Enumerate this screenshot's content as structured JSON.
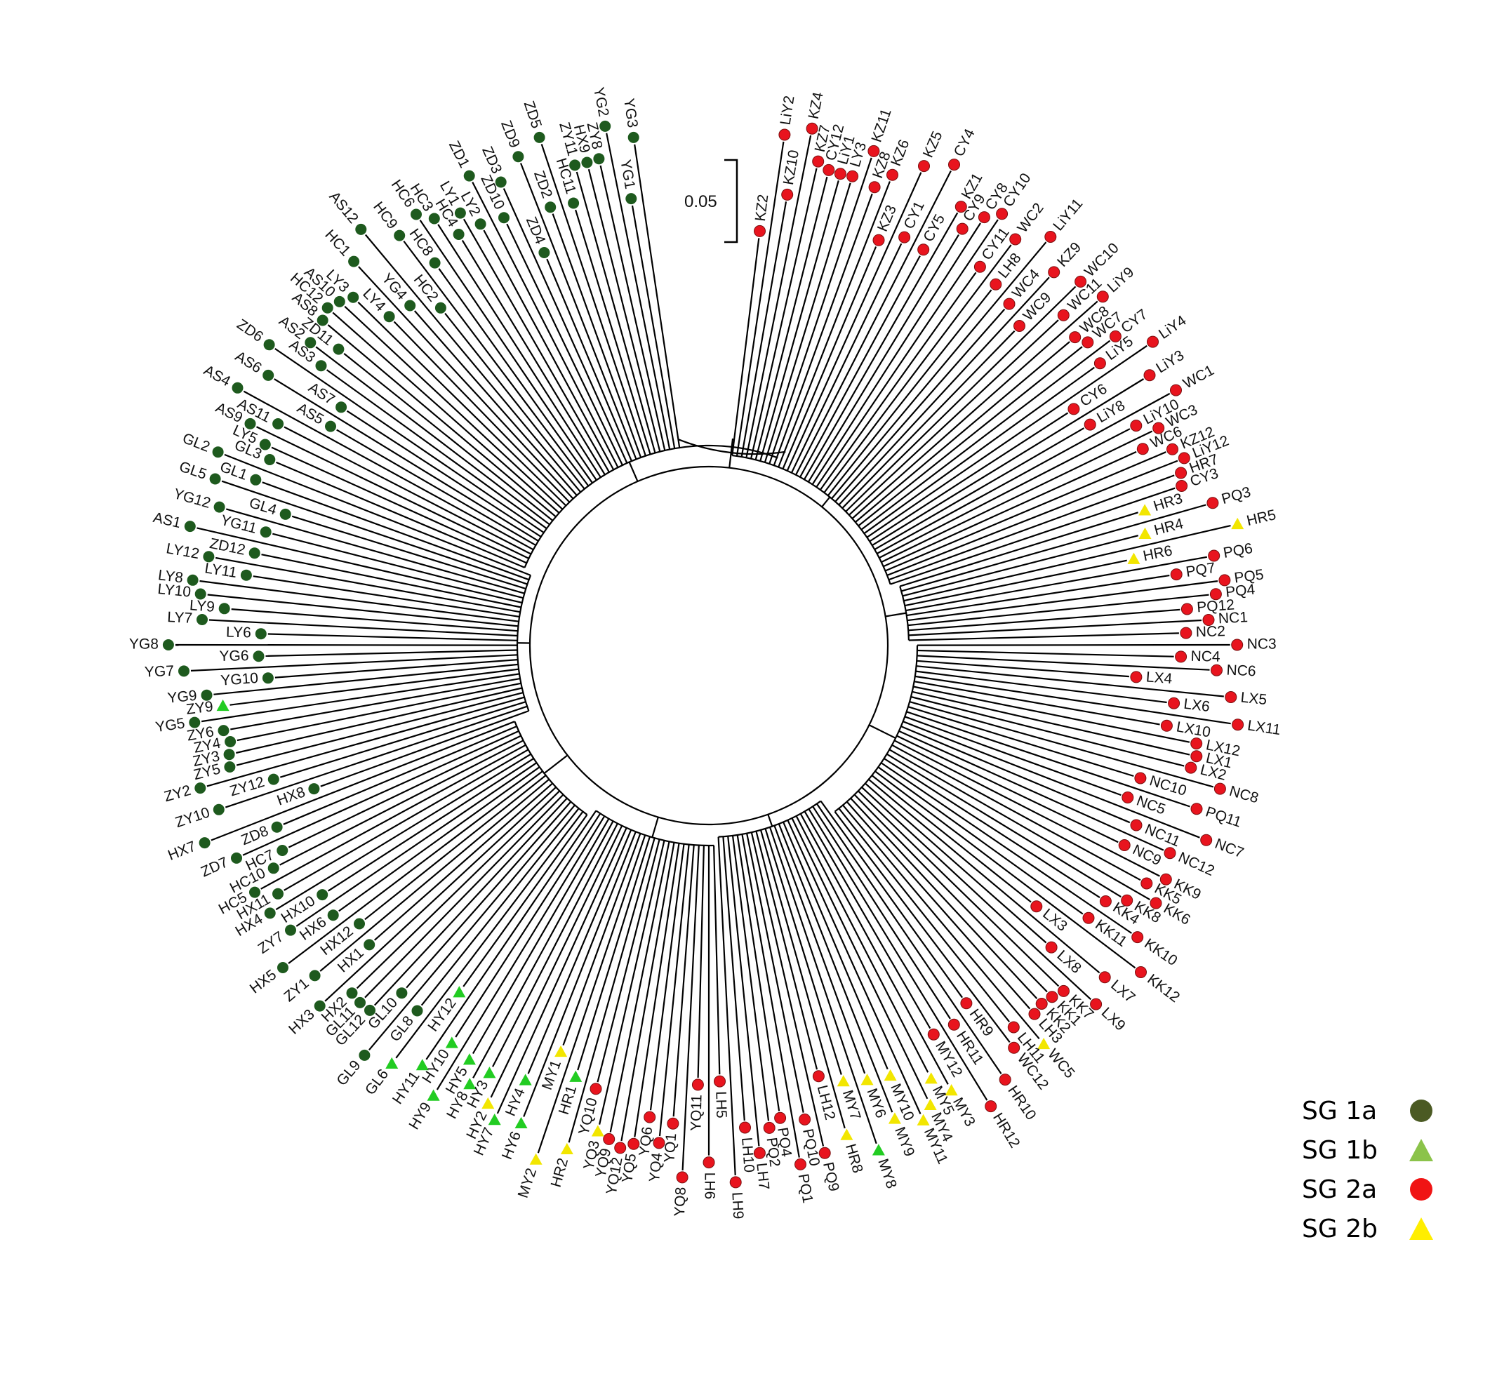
{
  "scale_bar": {
    "label": "0.05"
  },
  "groups": [
    {
      "id": "1a",
      "label": "SG 1a",
      "shape": "circle",
      "color": "#1e5a1e",
      "legend_color": "#4b5a23"
    },
    {
      "id": "1b",
      "label": "SG 1b",
      "shape": "triangle",
      "color": "#22cc22",
      "legend_color": "#8bc34a"
    },
    {
      "id": "2a",
      "label": "SG  2a",
      "shape": "circle",
      "color": "#e8141e",
      "legend_color": "#f01414"
    },
    {
      "id": "2b",
      "label": "SG  2b",
      "shape": "triangle",
      "color": "#f2e600",
      "legend_color": "#ffee00"
    }
  ],
  "leaves": [
    {
      "name": "KZ2",
      "g": "2a"
    },
    {
      "name": "LiY2",
      "g": "2a"
    },
    {
      "name": "KZ10",
      "g": "2a"
    },
    {
      "name": "KZ4",
      "g": "2a"
    },
    {
      "name": "KZ7",
      "g": "2a"
    },
    {
      "name": "CY12",
      "g": "2a"
    },
    {
      "name": "LiY1",
      "g": "2a"
    },
    {
      "name": "LY3",
      "g": "2a"
    },
    {
      "name": "KZ11",
      "g": "2a"
    },
    {
      "name": "KZ8",
      "g": "2a"
    },
    {
      "name": "KZ6",
      "g": "2a"
    },
    {
      "name": "KZ3",
      "g": "2a"
    },
    {
      "name": "KZ5",
      "g": "2a"
    },
    {
      "name": "CY1",
      "g": "2a"
    },
    {
      "name": "CY4",
      "g": "2a"
    },
    {
      "name": "CY5",
      "g": "2a"
    },
    {
      "name": "KZ1",
      "g": "2a"
    },
    {
      "name": "CY9",
      "g": "2a"
    },
    {
      "name": "CY8",
      "g": "2a"
    },
    {
      "name": "CY10",
      "g": "2a"
    },
    {
      "name": "CY11",
      "g": "2a"
    },
    {
      "name": "WC2",
      "g": "2a"
    },
    {
      "name": "LH8",
      "g": "2a"
    },
    {
      "name": "LiY11",
      "g": "2a"
    },
    {
      "name": "WC4",
      "g": "2a"
    },
    {
      "name": "KZ9",
      "g": "2a"
    },
    {
      "name": "WC9",
      "g": "2a"
    },
    {
      "name": "WC10",
      "g": "2a"
    },
    {
      "name": "WC11",
      "g": "2a"
    },
    {
      "name": "LiY9",
      "g": "2a"
    },
    {
      "name": "WC8",
      "g": "2a"
    },
    {
      "name": "WC7",
      "g": "2a"
    },
    {
      "name": "CY7",
      "g": "2a"
    },
    {
      "name": "LiY5",
      "g": "2a"
    },
    {
      "name": "LiY4",
      "g": "2a"
    },
    {
      "name": "CY6",
      "g": "2a"
    },
    {
      "name": "LiY3",
      "g": "2a"
    },
    {
      "name": "LiY8",
      "g": "2a"
    },
    {
      "name": "WC1",
      "g": "2a"
    },
    {
      "name": "LiY10",
      "g": "2a"
    },
    {
      "name": "WC3",
      "g": "2a"
    },
    {
      "name": "WC6",
      "g": "2a"
    },
    {
      "name": "KZ12",
      "g": "2a"
    },
    {
      "name": "LiY12",
      "g": "2a"
    },
    {
      "name": "HR7",
      "g": "2a"
    },
    {
      "name": "CY3",
      "g": "2a"
    },
    {
      "name": "HR3",
      "g": "2b"
    },
    {
      "name": "PQ3",
      "g": "2a"
    },
    {
      "name": "HR4",
      "g": "2b"
    },
    {
      "name": "HR5",
      "g": "2b"
    },
    {
      "name": "HR6",
      "g": "2b"
    },
    {
      "name": "PQ6",
      "g": "2a"
    },
    {
      "name": "PQ7",
      "g": "2a"
    },
    {
      "name": "PQ5",
      "g": "2a"
    },
    {
      "name": "PQ4",
      "g": "2a"
    },
    {
      "name": "PQ12",
      "g": "2a"
    },
    {
      "name": "NC1",
      "g": "2a"
    },
    {
      "name": "NC2",
      "g": "2a"
    },
    {
      "name": "NC3",
      "g": "2a"
    },
    {
      "name": "NC4",
      "g": "2a"
    },
    {
      "name": "NC6",
      "g": "2a"
    },
    {
      "name": "LX4",
      "g": "2a"
    },
    {
      "name": "LX5",
      "g": "2a"
    },
    {
      "name": "LX6",
      "g": "2a"
    },
    {
      "name": "LX11",
      "g": "2a"
    },
    {
      "name": "LX10",
      "g": "2a"
    },
    {
      "name": "LX12",
      "g": "2a"
    },
    {
      "name": "LX1",
      "g": "2a"
    },
    {
      "name": "LX2",
      "g": "2a"
    },
    {
      "name": "NC8",
      "g": "2a"
    },
    {
      "name": "NC10",
      "g": "2a"
    },
    {
      "name": "PQ11",
      "g": "2a"
    },
    {
      "name": "NC5",
      "g": "2a"
    },
    {
      "name": "NC7",
      "g": "2a"
    },
    {
      "name": "NC11",
      "g": "2a"
    },
    {
      "name": "NC12",
      "g": "2a"
    },
    {
      "name": "NC9",
      "g": "2a"
    },
    {
      "name": "KK9",
      "g": "2a"
    },
    {
      "name": "KK5",
      "g": "2a"
    },
    {
      "name": "KK6",
      "g": "2a"
    },
    {
      "name": "KK8",
      "g": "2a"
    },
    {
      "name": "KK4",
      "g": "2a"
    },
    {
      "name": "KK10",
      "g": "2a"
    },
    {
      "name": "KK11",
      "g": "2a"
    },
    {
      "name": "KK12",
      "g": "2a"
    },
    {
      "name": "LX3",
      "g": "2a"
    },
    {
      "name": "LX7",
      "g": "2a"
    },
    {
      "name": "LX8",
      "g": "2a"
    },
    {
      "name": "LX9",
      "g": "2a"
    },
    {
      "name": "KK7",
      "g": "2a"
    },
    {
      "name": "KK1",
      "g": "2a"
    },
    {
      "name": "KK2",
      "g": "2a"
    },
    {
      "name": "LH3",
      "g": "2a"
    },
    {
      "name": "WC5",
      "g": "2b"
    },
    {
      "name": "LH11",
      "g": "2a"
    },
    {
      "name": "WC12",
      "g": "2a"
    },
    {
      "name": "HR9",
      "g": "2a"
    },
    {
      "name": "HR10",
      "g": "2a"
    },
    {
      "name": "HR11",
      "g": "2a"
    },
    {
      "name": "HR12",
      "g": "2a"
    },
    {
      "name": "MY12",
      "g": "2a"
    },
    {
      "name": "MY3",
      "g": "2b"
    },
    {
      "name": "MY5",
      "g": "2b"
    },
    {
      "name": "MY4",
      "g": "2b"
    },
    {
      "name": "MY11",
      "g": "2b"
    },
    {
      "name": "MY10",
      "g": "2b"
    },
    {
      "name": "MY9",
      "g": "2b"
    },
    {
      "name": "MY6",
      "g": "2b"
    },
    {
      "name": "MY8",
      "g": "1b"
    },
    {
      "name": "MY7",
      "g": "2b"
    },
    {
      "name": "HR8",
      "g": "2b"
    },
    {
      "name": "LH12",
      "g": "2a"
    },
    {
      "name": "PQ9",
      "g": "2a"
    },
    {
      "name": "PQ10",
      "g": "2a"
    },
    {
      "name": "PQ1",
      "g": "2a"
    },
    {
      "name": "PQ4",
      "g": "2a"
    },
    {
      "name": "PQ2",
      "g": "2a"
    },
    {
      "name": "LH7",
      "g": "2a"
    },
    {
      "name": "LH10",
      "g": "2a"
    },
    {
      "name": "LH9",
      "g": "2a"
    },
    {
      "name": "LH5",
      "g": "2a"
    },
    {
      "name": "LH6",
      "g": "2a"
    },
    {
      "name": "YQ11",
      "g": "2a"
    },
    {
      "name": "YQ8",
      "g": "2a"
    },
    {
      "name": "YQ1",
      "g": "2a"
    },
    {
      "name": "YQ4",
      "g": "2a"
    },
    {
      "name": "YQ6",
      "g": "2a"
    },
    {
      "name": "YQ5",
      "g": "2a"
    },
    {
      "name": "YQ12",
      "g": "2a"
    },
    {
      "name": "YQ9",
      "g": "2a"
    },
    {
      "name": "YQ3",
      "g": "2b"
    },
    {
      "name": "YQ10",
      "g": "2a"
    },
    {
      "name": "HR2",
      "g": "2b"
    },
    {
      "name": "HR1",
      "g": "1b"
    },
    {
      "name": "MY2",
      "g": "2b"
    },
    {
      "name": "MY1",
      "g": "2b"
    },
    {
      "name": "HY6",
      "g": "1b"
    },
    {
      "name": "HY4",
      "g": "1b"
    },
    {
      "name": "HY7",
      "g": "1b"
    },
    {
      "name": "HY2",
      "g": "2b"
    },
    {
      "name": "HY3",
      "g": "1b"
    },
    {
      "name": "HY8",
      "g": "1b"
    },
    {
      "name": "HY5",
      "g": "1b"
    },
    {
      "name": "HY9",
      "g": "1b"
    },
    {
      "name": "HY10",
      "g": "1b"
    },
    {
      "name": "HY11",
      "g": "1b"
    },
    {
      "name": "HY12",
      "g": "1b"
    },
    {
      "name": "GL6",
      "g": "1b"
    },
    {
      "name": "GL8",
      "g": "1a"
    },
    {
      "name": "GL9",
      "g": "1a"
    },
    {
      "name": "GL10",
      "g": "1a"
    },
    {
      "name": "GL12",
      "g": "1a"
    },
    {
      "name": "GL11",
      "g": "1a"
    },
    {
      "name": "HX2",
      "g": "1a"
    },
    {
      "name": "HX3",
      "g": "1a"
    },
    {
      "name": "HX1",
      "g": "1a"
    },
    {
      "name": "ZY1",
      "g": "1a"
    },
    {
      "name": "HX12",
      "g": "1a"
    },
    {
      "name": "HX5",
      "g": "1a"
    },
    {
      "name": "HX6",
      "g": "1a"
    },
    {
      "name": "ZY7",
      "g": "1a"
    },
    {
      "name": "HX10",
      "g": "1a"
    },
    {
      "name": "HX4",
      "g": "1a"
    },
    {
      "name": "HX11",
      "g": "1a"
    },
    {
      "name": "HC5",
      "g": "1a"
    },
    {
      "name": "HC10",
      "g": "1a"
    },
    {
      "name": "HC7",
      "g": "1a"
    },
    {
      "name": "ZD7",
      "g": "1a"
    },
    {
      "name": "ZD8",
      "g": "1a"
    },
    {
      "name": "HX7",
      "g": "1a"
    },
    {
      "name": "HX8",
      "g": "1a"
    },
    {
      "name": "ZY10",
      "g": "1a"
    },
    {
      "name": "ZY12",
      "g": "1a"
    },
    {
      "name": "ZY2",
      "g": "1a"
    },
    {
      "name": "ZY5",
      "g": "1a"
    },
    {
      "name": "ZY3",
      "g": "1a"
    },
    {
      "name": "ZY4",
      "g": "1a"
    },
    {
      "name": "ZY6",
      "g": "1a"
    },
    {
      "name": "YG5",
      "g": "1a"
    },
    {
      "name": "ZY9",
      "g": "1b"
    },
    {
      "name": "YG9",
      "g": "1a"
    },
    {
      "name": "YG10",
      "g": "1a"
    },
    {
      "name": "YG7",
      "g": "1a"
    },
    {
      "name": "YG6",
      "g": "1a"
    },
    {
      "name": "YG8",
      "g": "1a"
    },
    {
      "name": "LY6",
      "g": "1a"
    },
    {
      "name": "LY7",
      "g": "1a"
    },
    {
      "name": "LY9",
      "g": "1a"
    },
    {
      "name": "LY10",
      "g": "1a"
    },
    {
      "name": "LY8",
      "g": "1a"
    },
    {
      "name": "LY11",
      "g": "1a"
    },
    {
      "name": "LY12",
      "g": "1a"
    },
    {
      "name": "ZD12",
      "g": "1a"
    },
    {
      "name": "AS1",
      "g": "1a"
    },
    {
      "name": "YG11",
      "g": "1a"
    },
    {
      "name": "YG12",
      "g": "1a"
    },
    {
      "name": "GL4",
      "g": "1a"
    },
    {
      "name": "GL5",
      "g": "1a"
    },
    {
      "name": "GL1",
      "g": "1a"
    },
    {
      "name": "GL2",
      "g": "1a"
    },
    {
      "name": "GL3",
      "g": "1a"
    },
    {
      "name": "LY5",
      "g": "1a"
    },
    {
      "name": "AS9",
      "g": "1a"
    },
    {
      "name": "AS11",
      "g": "1a"
    },
    {
      "name": "AS4",
      "g": "1a"
    },
    {
      "name": "AS5",
      "g": "1a"
    },
    {
      "name": "AS6",
      "g": "1a"
    },
    {
      "name": "AS7",
      "g": "1a"
    },
    {
      "name": "ZD6",
      "g": "1a"
    },
    {
      "name": "AS3",
      "g": "1a"
    },
    {
      "name": "AS2",
      "g": "1a"
    },
    {
      "name": "ZD11",
      "g": "1a"
    },
    {
      "name": "AS8",
      "g": "1a"
    },
    {
      "name": "HC12",
      "g": "1a"
    },
    {
      "name": "AS10",
      "g": "1a"
    },
    {
      "name": "LY3",
      "g": "1a"
    },
    {
      "name": "LY4",
      "g": "1a"
    },
    {
      "name": "HC1",
      "g": "1a"
    },
    {
      "name": "YG4",
      "g": "1a"
    },
    {
      "name": "AS12",
      "g": "1a"
    },
    {
      "name": "HC2",
      "g": "1a"
    },
    {
      "name": "HC9",
      "g": "1a"
    },
    {
      "name": "HC8",
      "g": "1a"
    },
    {
      "name": "HC6",
      "g": "1a"
    },
    {
      "name": "HC3",
      "g": "1a"
    },
    {
      "name": "HC4",
      "g": "1a"
    },
    {
      "name": "LY1",
      "g": "1a"
    },
    {
      "name": "LY2",
      "g": "1a"
    },
    {
      "name": "ZD1",
      "g": "1a"
    },
    {
      "name": "ZD10",
      "g": "1a"
    },
    {
      "name": "ZD3",
      "g": "1a"
    },
    {
      "name": "ZD4",
      "g": "1a"
    },
    {
      "name": "ZD9",
      "g": "1a"
    },
    {
      "name": "ZD2",
      "g": "1a"
    },
    {
      "name": "ZD5",
      "g": "1a"
    },
    {
      "name": "HC11",
      "g": "1a"
    },
    {
      "name": "ZY11",
      "g": "1a"
    },
    {
      "name": "HX9",
      "g": "1a"
    },
    {
      "name": "ZY8",
      "g": "1a"
    },
    {
      "name": "YG2",
      "g": "1a"
    },
    {
      "name": "YG1",
      "g": "1a"
    },
    {
      "name": "YG3",
      "g": "1a"
    }
  ]
}
